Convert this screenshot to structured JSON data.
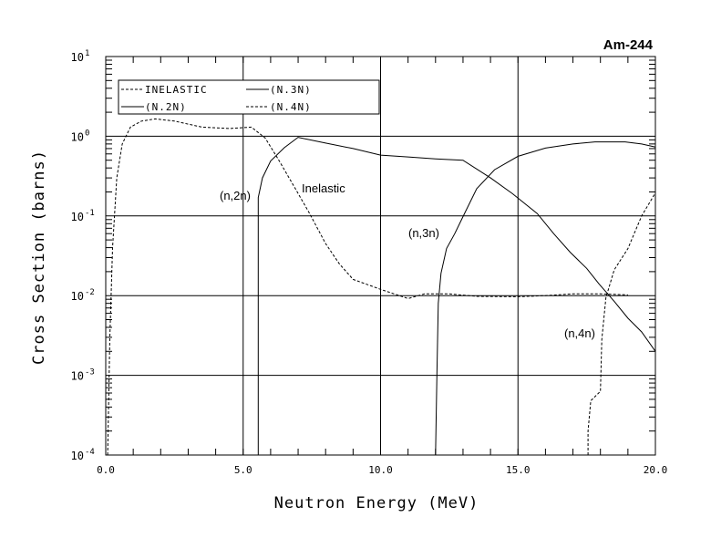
{
  "chart_data": {
    "type": "line",
    "title": "Am-244",
    "xlabel": "Neutron Energy (MeV)",
    "ylabel": "Cross Section (barns)",
    "xlim": [
      0,
      20
    ],
    "ylim": [
      0.0001,
      10
    ],
    "yscale": "log",
    "grid": true,
    "legend_position": "top-left",
    "x_ticks": [
      "0.0",
      "5.0",
      "10.0",
      "15.0",
      "20.0"
    ],
    "x_tick_values": [
      0,
      5,
      10,
      15,
      20
    ],
    "y_ticks": [
      {
        "base": "10",
        "exp": "1",
        "value": 10
      },
      {
        "base": "10",
        "exp": "0",
        "value": 1
      },
      {
        "base": "10",
        "exp": "-1",
        "value": 0.1
      },
      {
        "base": "10",
        "exp": "-2",
        "value": 0.01
      },
      {
        "base": "10",
        "exp": "-3",
        "value": 0.001
      },
      {
        "base": "10",
        "exp": "-4",
        "value": 0.0001
      }
    ],
    "series": [
      {
        "name": "INELASTIC",
        "style": "dashed",
        "annotation": "Inelastic",
        "x": [
          0.07,
          0.15,
          0.25,
          0.4,
          0.6,
          0.9,
          1.3,
          1.8,
          2.5,
          3.5,
          4.5,
          5.3,
          5.8,
          6.3,
          6.9,
          7.4,
          8.0,
          8.5,
          9.0,
          10.0,
          11.0,
          11.6,
          12.5,
          13.5,
          15.0,
          16.0,
          17.0,
          18.0,
          19.0
        ],
        "y": [
          0.0001,
          0.003,
          0.04,
          0.3,
          0.8,
          1.3,
          1.55,
          1.65,
          1.55,
          1.3,
          1.25,
          1.3,
          0.95,
          0.5,
          0.22,
          0.11,
          0.045,
          0.025,
          0.016,
          0.012,
          0.0092,
          0.0105,
          0.0105,
          0.0098,
          0.0097,
          0.01,
          0.0105,
          0.0105,
          0.0102
        ]
      },
      {
        "name": "(N.2N)",
        "style": "solid",
        "annotation": "(n,2n)",
        "x": [
          5.55,
          5.55,
          5.7,
          6.0,
          6.5,
          7.0,
          8.0,
          9.0,
          10.0,
          11.0,
          12.0,
          13.0,
          14.0,
          14.8,
          15.7,
          16.3,
          16.9,
          17.5,
          17.95,
          18.5,
          19.0,
          19.5,
          20.0
        ],
        "y": [
          0.0001,
          0.17,
          0.3,
          0.49,
          0.72,
          0.97,
          0.82,
          0.7,
          0.58,
          0.55,
          0.52,
          0.5,
          0.3,
          0.19,
          0.107,
          0.06,
          0.035,
          0.022,
          0.014,
          0.0085,
          0.0052,
          0.0035,
          0.002
        ]
      },
      {
        "name": "(N.3N)",
        "style": "solid",
        "annotation": "(n,3n)",
        "x": [
          12.0,
          12.05,
          12.1,
          12.2,
          12.4,
          12.7,
          13.0,
          13.5,
          14.15,
          15.0,
          16.0,
          17.0,
          17.8,
          18.9,
          19.5,
          20.0
        ],
        "y": [
          0.0001,
          0.001,
          0.008,
          0.019,
          0.039,
          0.06,
          0.098,
          0.22,
          0.38,
          0.56,
          0.71,
          0.8,
          0.85,
          0.85,
          0.8,
          0.73
        ]
      },
      {
        "name": "(N.4N)",
        "style": "dashed",
        "annotation": "(n,4n)",
        "x": [
          17.55,
          17.55,
          17.65,
          18.0,
          18.05,
          18.2,
          18.5,
          19.0,
          19.5,
          20.0
        ],
        "y": [
          0.0001,
          0.0002,
          0.00048,
          0.00063,
          0.0028,
          0.0094,
          0.021,
          0.039,
          0.1,
          0.195
        ]
      }
    ]
  }
}
